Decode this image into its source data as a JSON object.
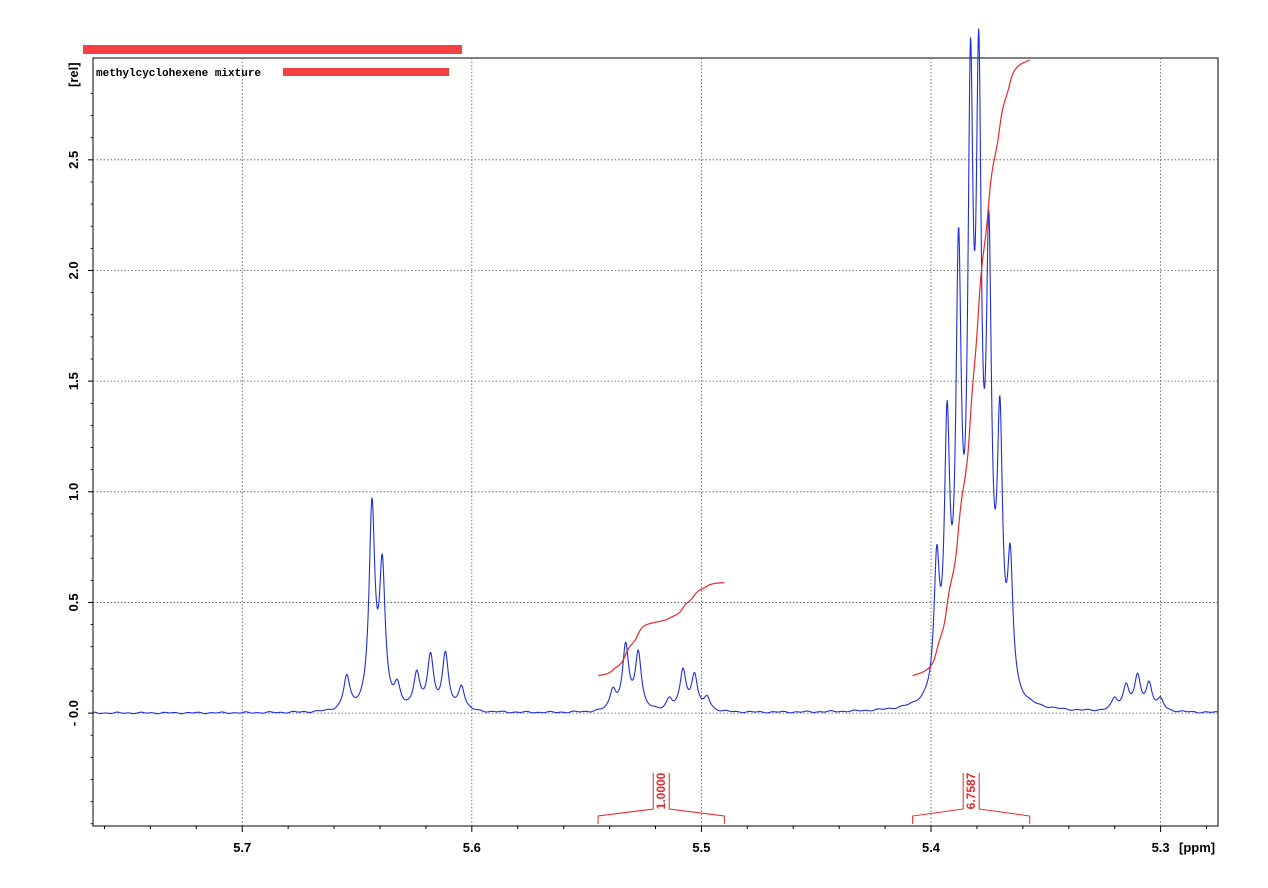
{
  "title": "methylcyclohexene mixture",
  "colors": {
    "spectrum": "#1f2fd6",
    "integral": "#e8282a",
    "redaction": "#f44040",
    "grid": "#555555",
    "frame": "#000000"
  },
  "chart_data": {
    "type": "line",
    "title": "methylcyclohexene mixture",
    "xlabel": "[ppm]",
    "ylabel": "[rel]",
    "x_reversed": true,
    "xlim": [
      5.765,
      5.275
    ],
    "ylim": [
      -0.51,
      2.96
    ],
    "x_ticks": [
      5.7,
      5.6,
      5.5,
      5.4,
      5.3
    ],
    "x_tick_labels": [
      "5.7",
      "5.6",
      "5.5",
      "5.4",
      "5.3"
    ],
    "y_ticks": [
      0.0,
      0.5,
      1.0,
      1.5,
      2.0,
      2.5
    ],
    "y_tick_labels": [
      "- 0.0",
      "0.5",
      "1.0",
      "1.5",
      "2.0",
      "2.5"
    ],
    "grid": true,
    "series": [
      {
        "kind": "spectrum",
        "peaks": [
          {
            "ppm": 5.6545,
            "height": 0.15,
            "width": 0.0016
          },
          {
            "ppm": 5.6435,
            "height": 0.9,
            "width": 0.0015
          },
          {
            "ppm": 5.639,
            "height": 0.62,
            "width": 0.0015
          },
          {
            "ppm": 5.6325,
            "height": 0.09,
            "width": 0.0016
          },
          {
            "ppm": 5.624,
            "height": 0.16,
            "width": 0.0016
          },
          {
            "ppm": 5.618,
            "height": 0.24,
            "width": 0.0016
          },
          {
            "ppm": 5.6115,
            "height": 0.25,
            "width": 0.0016
          },
          {
            "ppm": 5.6045,
            "height": 0.11,
            "width": 0.0016
          },
          {
            "ppm": 5.5385,
            "height": 0.09,
            "width": 0.0016
          },
          {
            "ppm": 5.533,
            "height": 0.29,
            "width": 0.0016
          },
          {
            "ppm": 5.5275,
            "height": 0.26,
            "width": 0.0016
          },
          {
            "ppm": 5.514,
            "height": 0.05,
            "width": 0.0016
          },
          {
            "ppm": 5.508,
            "height": 0.18,
            "width": 0.0016
          },
          {
            "ppm": 5.503,
            "height": 0.16,
            "width": 0.0016
          },
          {
            "ppm": 5.4975,
            "height": 0.06,
            "width": 0.0016
          },
          {
            "ppm": 5.3975,
            "height": 0.57,
            "width": 0.0014
          },
          {
            "ppm": 5.393,
            "height": 1.14,
            "width": 0.0014
          },
          {
            "ppm": 5.388,
            "height": 1.84,
            "width": 0.0014
          },
          {
            "ppm": 5.3828,
            "height": 2.5,
            "width": 0.0014
          },
          {
            "ppm": 5.3792,
            "height": 2.5,
            "width": 0.0014
          },
          {
            "ppm": 5.3748,
            "height": 1.84,
            "width": 0.0014
          },
          {
            "ppm": 5.37,
            "height": 1.14,
            "width": 0.0014
          },
          {
            "ppm": 5.3655,
            "height": 0.57,
            "width": 0.0014
          },
          {
            "ppm": 5.32,
            "height": 0.05,
            "width": 0.0016
          },
          {
            "ppm": 5.315,
            "height": 0.11,
            "width": 0.0016
          },
          {
            "ppm": 5.31,
            "height": 0.15,
            "width": 0.0016
          },
          {
            "ppm": 5.305,
            "height": 0.12,
            "width": 0.0016
          },
          {
            "ppm": 5.3,
            "height": 0.05,
            "width": 0.0016
          }
        ]
      }
    ],
    "integrals": [
      {
        "from": 5.545,
        "to": 5.49,
        "value": 1.0,
        "label": "1.0000",
        "start_y": 0.17,
        "end_y": 0.59
      },
      {
        "from": 5.408,
        "to": 5.357,
        "value": 6.7587,
        "label": "6.7587",
        "start_y": 0.17,
        "end_y": 2.95
      }
    ]
  }
}
